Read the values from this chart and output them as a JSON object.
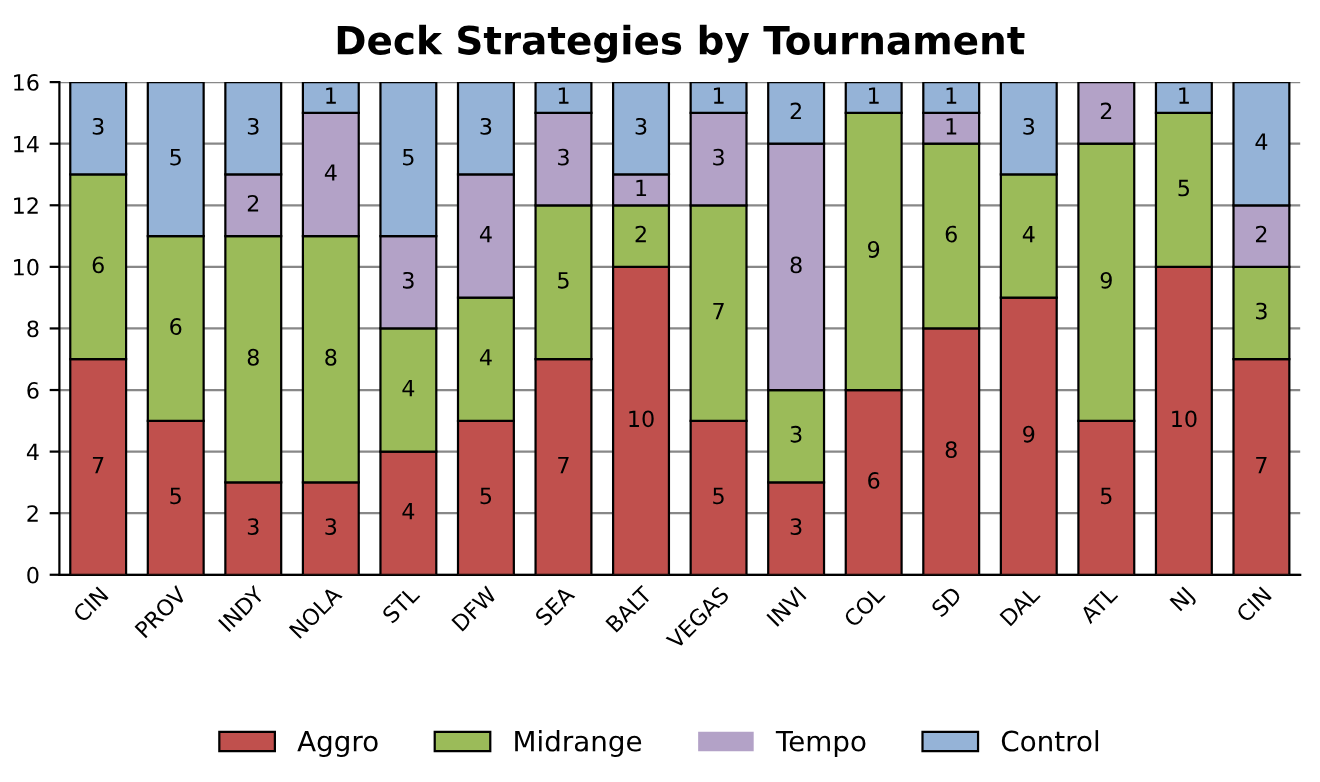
{
  "chart_data": {
    "type": "bar",
    "title": "Deck Strategies by Tournament",
    "stacked": true,
    "categories": [
      "CIN",
      "PROV",
      "INDY",
      "NOLA",
      "STL",
      "DFW",
      "SEA",
      "BALT",
      "VEGAS",
      "INVI",
      "COL",
      "SD",
      "DAL",
      "ATL",
      "NJ",
      "CIN"
    ],
    "series": [
      {
        "name": "Aggro",
        "color": "#c0504d",
        "values": [
          7,
          5,
          3,
          3,
          4,
          5,
          7,
          10,
          5,
          3,
          6,
          8,
          9,
          5,
          10,
          7
        ],
        "value_labels": [
          "7",
          "5",
          "3",
          "3",
          "4",
          "5",
          "7",
          "10",
          "5",
          "3",
          "6",
          "8",
          "9",
          "5",
          "10",
          "7"
        ]
      },
      {
        "name": "Midrange",
        "color": "#9bbb59",
        "values": [
          6,
          6,
          8,
          8,
          4,
          4,
          5,
          2,
          7,
          3,
          9,
          6,
          4,
          9,
          5,
          3
        ],
        "value_labels": [
          "6",
          "6",
          "8",
          "8",
          "4",
          "4",
          "5",
          "2",
          "7",
          "3",
          "9",
          "6",
          "4",
          "9",
          "5",
          "3"
        ]
      },
      {
        "name": "Tempo",
        "color": "#b3a2c7",
        "values": [
          0,
          0,
          2,
          4,
          3,
          4,
          3,
          1,
          3,
          8,
          0,
          1,
          0,
          2,
          0,
          2
        ],
        "value_labels": [
          null,
          null,
          "2",
          "4",
          "3",
          "4",
          "3",
          "1",
          "3",
          "8",
          null,
          "1",
          null,
          "2",
          null,
          "2"
        ]
      },
      {
        "name": "Control",
        "color": "#95b3d7",
        "values": [
          3,
          5,
          3,
          1,
          5,
          3,
          1,
          3,
          1,
          2,
          1,
          1,
          3,
          0,
          1,
          4
        ],
        "value_labels": [
          "3",
          "5",
          "3",
          "1",
          "5",
          "3",
          "1",
          "3",
          "1",
          "2",
          "1",
          "1",
          "3",
          null,
          "1",
          "4"
        ]
      }
    ],
    "ylim": [
      0,
      16
    ],
    "yticks": [
      0,
      2,
      4,
      6,
      8,
      10,
      12,
      14,
      16
    ],
    "grid": "y",
    "legend": "bottom"
  }
}
